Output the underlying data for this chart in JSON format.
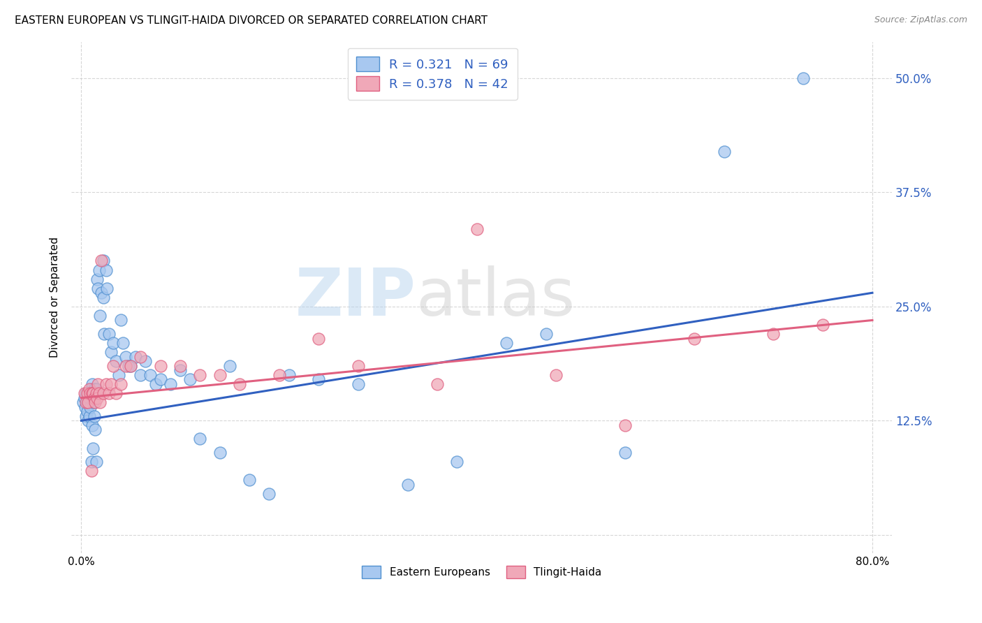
{
  "title": "EASTERN EUROPEAN VS TLINGIT-HAIDA DIVORCED OR SEPARATED CORRELATION CHART",
  "source": "Source: ZipAtlas.com",
  "ylabel": "Divorced or Separated",
  "ytick_values": [
    0.0,
    0.125,
    0.25,
    0.375,
    0.5
  ],
  "ytick_labels": [
    "",
    "12.5%",
    "25.0%",
    "37.5%",
    "50.0%"
  ],
  "xlim": [
    -0.01,
    0.82
  ],
  "ylim": [
    -0.02,
    0.54
  ],
  "xtick_vals": [
    0.0,
    0.8
  ],
  "xtick_labels": [
    "0.0%",
    "80.0%"
  ],
  "blue_R": "0.321",
  "blue_N": "69",
  "pink_R": "0.378",
  "pink_N": "42",
  "blue_color": "#A8C8F0",
  "pink_color": "#F0A8B8",
  "blue_edge_color": "#5090D0",
  "pink_edge_color": "#E06080",
  "blue_line_color": "#3060C0",
  "pink_line_color": "#E06080",
  "legend_label_blue": "Eastern Europeans",
  "legend_label_pink": "Tlingit-Haida",
  "watermark_zip": "ZIP",
  "watermark_atlas": "atlas",
  "blue_x": [
    0.002,
    0.003,
    0.004,
    0.005,
    0.005,
    0.006,
    0.006,
    0.007,
    0.007,
    0.008,
    0.008,
    0.009,
    0.009,
    0.01,
    0.01,
    0.011,
    0.011,
    0.012,
    0.012,
    0.013,
    0.013,
    0.014,
    0.014,
    0.015,
    0.015,
    0.016,
    0.017,
    0.018,
    0.019,
    0.02,
    0.022,
    0.022,
    0.023,
    0.025,
    0.026,
    0.028,
    0.03,
    0.032,
    0.035,
    0.038,
    0.04,
    0.042,
    0.045,
    0.048,
    0.05,
    0.055,
    0.06,
    0.065,
    0.07,
    0.075,
    0.08,
    0.09,
    0.1,
    0.11,
    0.12,
    0.14,
    0.15,
    0.17,
    0.19,
    0.21,
    0.24,
    0.28,
    0.33,
    0.38,
    0.43,
    0.47,
    0.55,
    0.65,
    0.73
  ],
  "blue_y": [
    0.145,
    0.15,
    0.14,
    0.13,
    0.155,
    0.135,
    0.145,
    0.125,
    0.155,
    0.13,
    0.15,
    0.14,
    0.155,
    0.08,
    0.16,
    0.12,
    0.165,
    0.095,
    0.145,
    0.13,
    0.16,
    0.115,
    0.155,
    0.08,
    0.16,
    0.28,
    0.27,
    0.29,
    0.24,
    0.265,
    0.3,
    0.26,
    0.22,
    0.29,
    0.27,
    0.22,
    0.2,
    0.21,
    0.19,
    0.175,
    0.235,
    0.21,
    0.195,
    0.185,
    0.185,
    0.195,
    0.175,
    0.19,
    0.175,
    0.165,
    0.17,
    0.165,
    0.18,
    0.17,
    0.105,
    0.09,
    0.185,
    0.06,
    0.045,
    0.175,
    0.17,
    0.165,
    0.055,
    0.08,
    0.21,
    0.22,
    0.09,
    0.42,
    0.5
  ],
  "pink_x": [
    0.003,
    0.005,
    0.006,
    0.007,
    0.008,
    0.009,
    0.01,
    0.011,
    0.012,
    0.013,
    0.014,
    0.015,
    0.016,
    0.017,
    0.018,
    0.019,
    0.02,
    0.022,
    0.025,
    0.028,
    0.03,
    0.032,
    0.035,
    0.04,
    0.045,
    0.05,
    0.06,
    0.08,
    0.1,
    0.12,
    0.14,
    0.16,
    0.2,
    0.24,
    0.28,
    0.36,
    0.4,
    0.48,
    0.55,
    0.62,
    0.7,
    0.75
  ],
  "pink_y": [
    0.155,
    0.145,
    0.155,
    0.145,
    0.16,
    0.155,
    0.07,
    0.155,
    0.155,
    0.15,
    0.145,
    0.155,
    0.15,
    0.165,
    0.155,
    0.145,
    0.3,
    0.155,
    0.165,
    0.155,
    0.165,
    0.185,
    0.155,
    0.165,
    0.185,
    0.185,
    0.195,
    0.185,
    0.185,
    0.175,
    0.175,
    0.165,
    0.175,
    0.215,
    0.185,
    0.165,
    0.335,
    0.175,
    0.12,
    0.215,
    0.22,
    0.23
  ],
  "blue_trend_x": [
    0.0,
    0.8
  ],
  "blue_trend_y": [
    0.125,
    0.265
  ],
  "pink_trend_x": [
    0.0,
    0.8
  ],
  "pink_trend_y": [
    0.15,
    0.235
  ]
}
